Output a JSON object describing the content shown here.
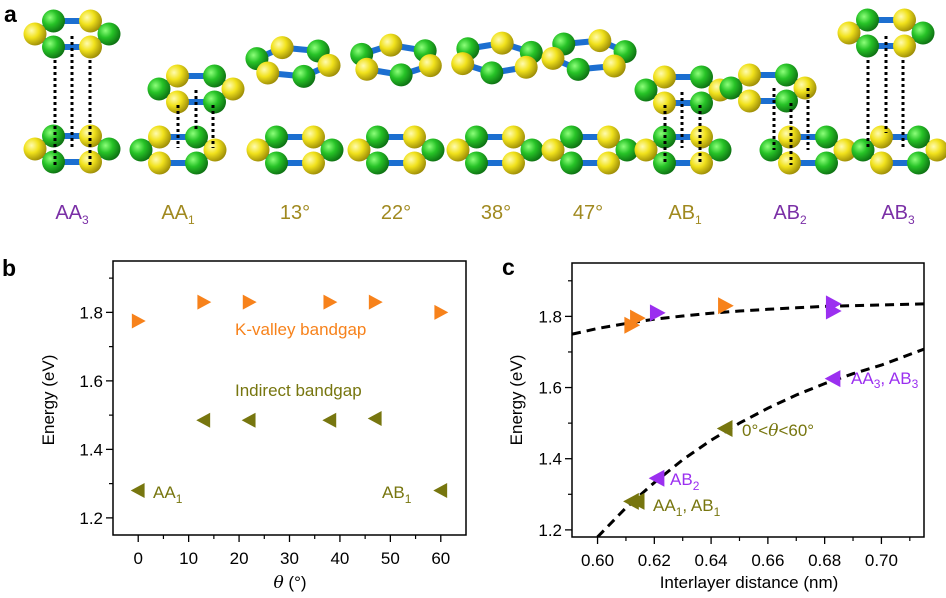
{
  "colors": {
    "green_atom": "#27c327",
    "yellow_atom": "#f1e21c",
    "bond": "#1c6fd0",
    "label_purple": "#7a2fa6",
    "label_olive": "#a0891f",
    "orange": "#f7821b",
    "olive": "#77760f",
    "purple": "#9b2ff0"
  },
  "panel_labels": {
    "a": "a",
    "b": "b",
    "c": "c"
  },
  "structures": [
    {
      "label": "AA",
      "sub": "3",
      "color": "purple"
    },
    {
      "label": "AA",
      "sub": "1",
      "color": "olive"
    },
    {
      "label": "13°",
      "sub": "",
      "color": "olive"
    },
    {
      "label": "22°",
      "sub": "",
      "color": "olive"
    },
    {
      "label": "38°",
      "sub": "",
      "color": "olive"
    },
    {
      "label": "47°",
      "sub": "",
      "color": "olive"
    },
    {
      "label": "AB",
      "sub": "1",
      "color": "olive"
    },
    {
      "label": "AB",
      "sub": "2",
      "color": "purple"
    },
    {
      "label": "AB",
      "sub": "3",
      "color": "purple"
    }
  ],
  "chart_data": [
    {
      "type": "scatter",
      "panel": "b",
      "xlabel": "θ (°)",
      "xlabel_parts": {
        "var": "θ",
        "unit": " (°)"
      },
      "ylabel": "Energy (eV)",
      "xlim": [
        -5,
        65
      ],
      "ylim": [
        1.15,
        1.95
      ],
      "xticks": [
        "0",
        "10",
        "20",
        "30",
        "40",
        "50",
        "60"
      ],
      "yticks": [
        "1.2",
        "1.4",
        "1.6",
        "1.8"
      ],
      "grid": false,
      "series": [
        {
          "marker": "triangle-right",
          "color": "orange",
          "x": [
            0,
            13,
            22,
            38,
            47,
            60
          ],
          "y": [
            1.775,
            1.83,
            1.83,
            1.83,
            1.83,
            1.8
          ]
        },
        {
          "marker": "triangle-left",
          "color": "olive",
          "x": [
            0,
            13,
            22,
            38,
            47,
            60
          ],
          "y": [
            1.28,
            1.485,
            1.485,
            1.485,
            1.49,
            1.28
          ]
        }
      ],
      "annotations": {
        "k_valley": "K-valley bandgap",
        "indirect": "Indirect bandgap",
        "aa1": {
          "main": "AA",
          "sub": "1"
        },
        "ab1": {
          "main": "AB",
          "sub": "1"
        }
      }
    },
    {
      "type": "scatter",
      "panel": "c",
      "xlabel": "Interlayer distance (nm)",
      "ylabel": "Energy (eV)",
      "xlim": [
        0.591,
        0.715
      ],
      "ylim": [
        1.18,
        1.95
      ],
      "xticks": [
        "0.60",
        "0.62",
        "0.64",
        "0.66",
        "0.68",
        "0.70"
      ],
      "yticks": [
        "1.2",
        "1.4",
        "1.6",
        "1.8"
      ],
      "grid": false,
      "points": [
        {
          "x": 0.612,
          "y": 1.775,
          "marker": "triangle-right",
          "color": "orange"
        },
        {
          "x": 0.614,
          "y": 1.795,
          "marker": "triangle-right",
          "color": "orange"
        },
        {
          "x": 0.645,
          "y": 1.83,
          "marker": "triangle-right",
          "color": "orange"
        },
        {
          "x": 0.621,
          "y": 1.81,
          "marker": "triangle-right",
          "color": "purple"
        },
        {
          "x": 0.683,
          "y": 1.835,
          "marker": "triangle-right",
          "color": "purple"
        },
        {
          "x": 0.683,
          "y": 1.815,
          "marker": "triangle-right",
          "color": "purple"
        },
        {
          "x": 0.683,
          "y": 1.625,
          "marker": "triangle-left",
          "color": "purple"
        },
        {
          "x": 0.621,
          "y": 1.345,
          "marker": "triangle-left",
          "color": "purple"
        },
        {
          "x": 0.645,
          "y": 1.485,
          "marker": "triangle-left",
          "color": "olive"
        },
        {
          "x": 0.612,
          "y": 1.28,
          "marker": "triangle-left",
          "color": "olive"
        },
        {
          "x": 0.614,
          "y": 1.28,
          "marker": "triangle-left",
          "color": "olive"
        }
      ],
      "fit_curves": [
        {
          "style": "dashed",
          "x": [
            0.591,
            0.6,
            0.61,
            0.62,
            0.63,
            0.64,
            0.65,
            0.66,
            0.67,
            0.68,
            0.69,
            0.7,
            0.715
          ],
          "y": [
            1.75,
            1.766,
            1.78,
            1.792,
            1.801,
            1.809,
            1.815,
            1.82,
            1.824,
            1.828,
            1.83,
            1.832,
            1.835
          ]
        },
        {
          "style": "dashed",
          "x": [
            0.6,
            0.61,
            0.62,
            0.63,
            0.64,
            0.65,
            0.66,
            0.67,
            0.68,
            0.69,
            0.7,
            0.715
          ],
          "y": [
            1.18,
            1.262,
            1.333,
            1.397,
            1.452,
            1.5,
            1.542,
            1.579,
            1.611,
            1.639,
            1.663,
            1.708
          ]
        }
      ],
      "annotations": {
        "aa3_ab3": {
          "a": "AA",
          "a_sub": "3",
          "sep": ", ",
          "b": "AB",
          "b_sub": "3"
        },
        "twist": {
          "pre": "0°<",
          "var": "θ",
          "post": "<60°"
        },
        "ab2": {
          "main": "AB",
          "sub": "2"
        },
        "aa1_ab1": {
          "a": "AA",
          "a_sub": "1",
          "sep": ", ",
          "b": "AB",
          "b_sub": "1"
        }
      }
    }
  ]
}
